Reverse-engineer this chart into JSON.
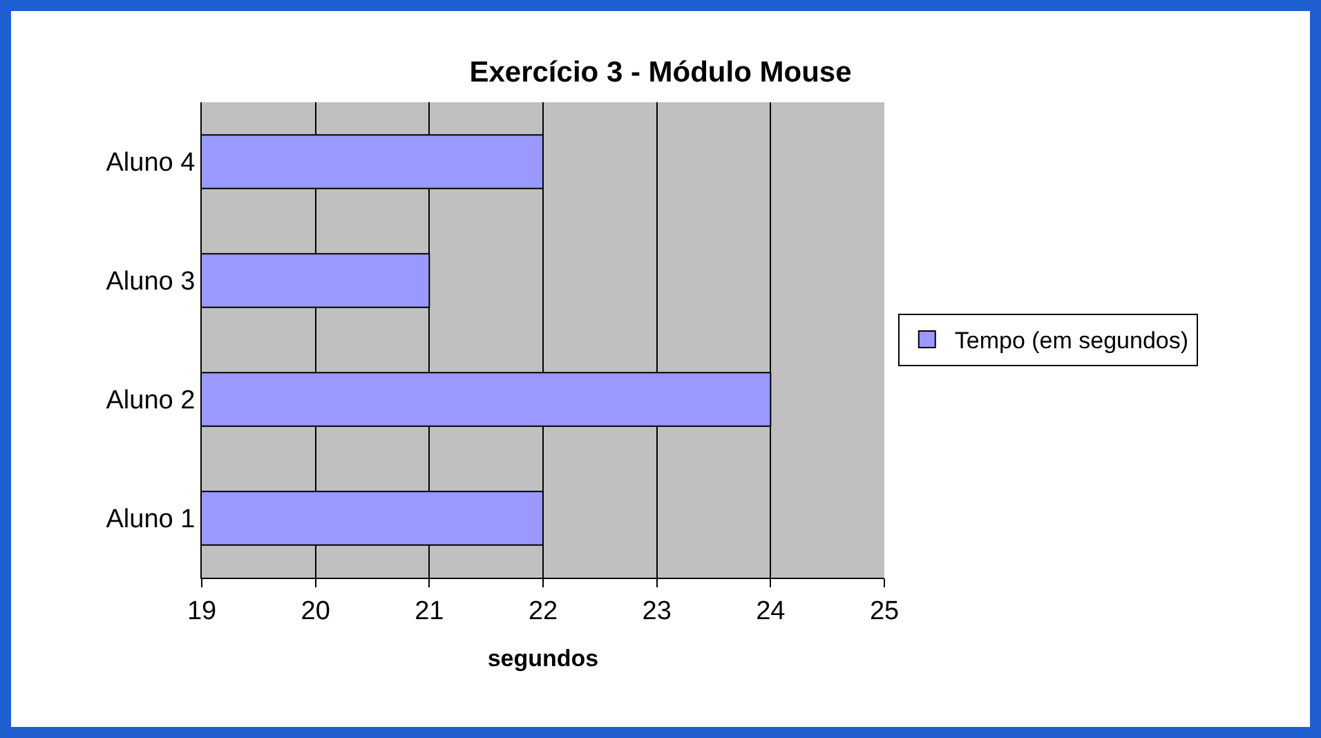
{
  "chart_data": {
    "type": "bar",
    "orientation": "horizontal",
    "title": "Exercício 3 - Módulo Mouse",
    "xlabel": "segundos",
    "categories": [
      "Aluno 4",
      "Aluno 3",
      "Aluno 2",
      "Aluno 1"
    ],
    "series": [
      {
        "name": "Tempo (em segundos)",
        "color": "#9999ff",
        "values": [
          22,
          21,
          24,
          22
        ]
      }
    ],
    "xlim": [
      19,
      25
    ],
    "xticks": [
      19,
      20,
      21,
      22,
      23,
      24,
      25
    ],
    "grid": "x",
    "legend": "right"
  }
}
